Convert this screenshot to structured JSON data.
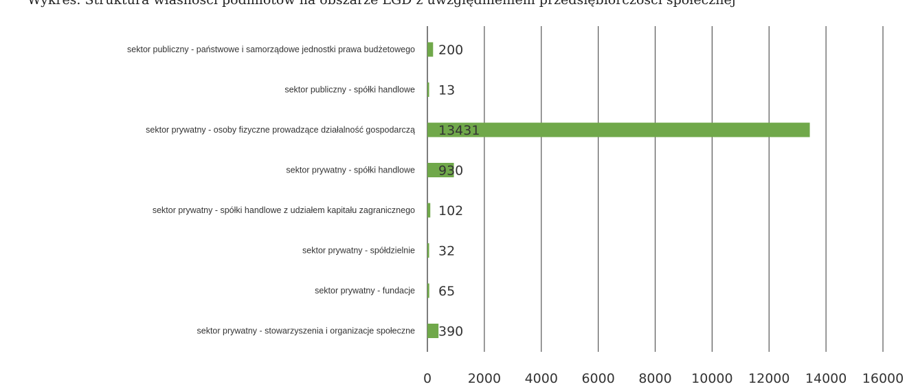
{
  "chart_data": {
    "type": "bar",
    "orientation": "horizontal",
    "title": "Wykres. Struktura własności podmiotów na obszarze LGD z uwzględnieniem przedsiębiorczości społecznej",
    "categories": [
      "sektor publiczny - państwowe i samorządowe jednostki prawa budżetowego",
      "sektor publiczny - spółki handlowe",
      "sektor prywatny - osoby fizyczne prowadzące działalność gospodarczą",
      "sektor prywatny - spółki handlowe",
      "sektor prywatny - spółki handlowe z udziałem kapitału zagranicznego",
      "sektor prywatny - spółdzielnie",
      "sektor prywatny - fundacje",
      "sektor prywatny - stowarzyszenia i organizacje społeczne"
    ],
    "values": [
      200,
      13,
      13431,
      930,
      102,
      32,
      65,
      390
    ],
    "value_labels": [
      "200",
      "13",
      "13431",
      "930",
      "102",
      "32",
      "65",
      "390"
    ],
    "xlim": [
      0,
      16000
    ],
    "xticks": [
      0,
      2000,
      4000,
      6000,
      8000,
      10000,
      12000,
      14000,
      16000
    ],
    "xtick_labels": [
      "0",
      "2000",
      "4000",
      "6000",
      "8000",
      "10000",
      "12000",
      "14000",
      "16000"
    ],
    "xlabel": "",
    "ylabel": "",
    "grid": "vertical",
    "legend": "none",
    "bar_color": "#70a84a",
    "grid_color": "#555555"
  }
}
